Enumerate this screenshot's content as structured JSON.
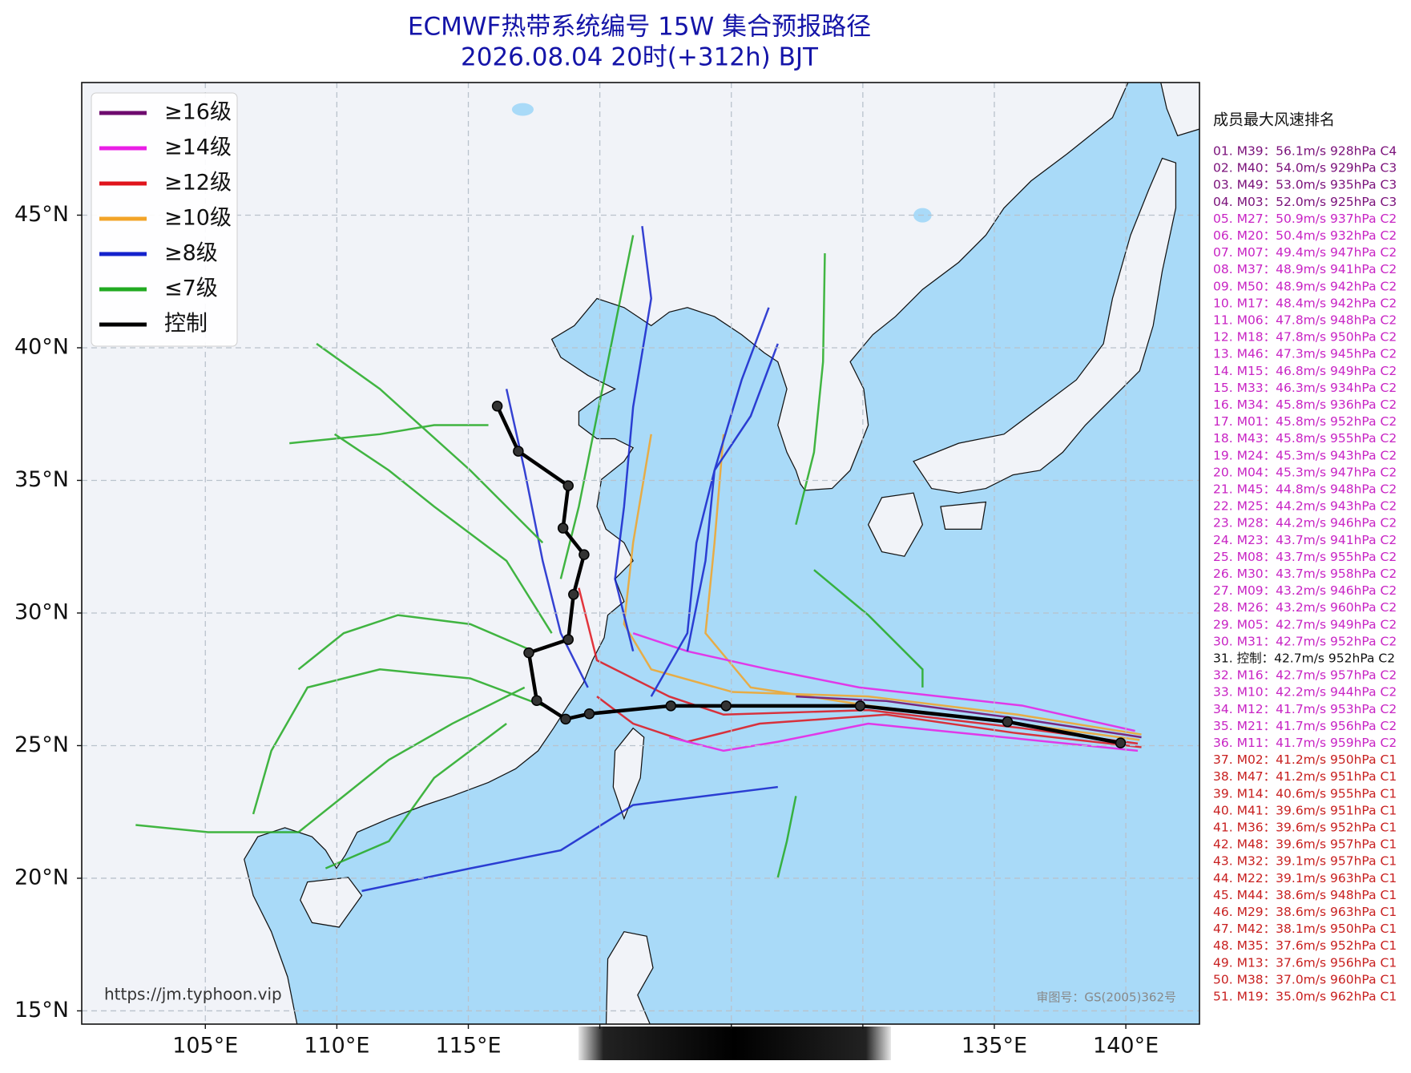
{
  "header": {
    "title": "ECMWF热带系统编号 15W 集合预报路径",
    "subtitle": "2026.08.04 20时(+312h) BJT"
  },
  "chart_data": {
    "type": "track-map",
    "xlim": [
      100.3,
      142.8
    ],
    "ylim": [
      14.5,
      50
    ],
    "grid": true,
    "legend_position": "upper left",
    "xticks": [
      {
        "value": 105,
        "label": "105°E"
      },
      {
        "value": 110,
        "label": "110°E"
      },
      {
        "value": 115,
        "label": "115°E"
      },
      {
        "value": 120,
        "label": null
      },
      {
        "value": 125,
        "label": null
      },
      {
        "value": 130,
        "label": null
      },
      {
        "value": 135,
        "label": "135°E"
      },
      {
        "value": 140,
        "label": "140°E"
      }
    ],
    "yticks": [
      {
        "value": 15,
        "label": "15°N"
      },
      {
        "value": 20,
        "label": "20°N"
      },
      {
        "value": 25,
        "label": "25°N"
      },
      {
        "value": 30,
        "label": "30°N"
      },
      {
        "value": 35,
        "label": "35°N"
      },
      {
        "value": 40,
        "label": "40°N"
      },
      {
        "value": 45,
        "label": "45°N"
      }
    ],
    "series": [
      {
        "name": "≥16级",
        "color": "#6e0a6e"
      },
      {
        "name": "≥14级",
        "color": "#ea1ee6"
      },
      {
        "name": "≥12级",
        "color": "#e0141c"
      },
      {
        "name": "≥10级",
        "color": "#f2a428"
      },
      {
        "name": "≥8级",
        "color": "#1422cc"
      },
      {
        "name": "≤7级",
        "color": "#22aa22"
      },
      {
        "name": "控制",
        "color": "#000000",
        "x": [
          139.8,
          135.5,
          129.9,
          124.8,
          122.7,
          119.6,
          118.7,
          117.6,
          117.3,
          118.8,
          119.0,
          119.4,
          118.6,
          118.8,
          116.9,
          116.1
        ],
        "y": [
          25.1,
          25.9,
          26.5,
          26.5,
          26.5,
          26.2,
          26.0,
          26.7,
          28.5,
          29.0,
          30.7,
          32.2,
          33.2,
          34.8,
          36.1,
          37.8
        ]
      }
    ]
  },
  "ranking": {
    "title": "成员最大风速排名",
    "entries": [
      {
        "text": "01. M39：56.1m/s 928hPa C4",
        "color": "#7a107a"
      },
      {
        "text": "02. M40：54.0m/s 929hPa C3",
        "color": "#7a107a"
      },
      {
        "text": "03. M49：53.0m/s 935hPa C3",
        "color": "#7a107a"
      },
      {
        "text": "04. M03：52.0m/s 925hPa C3",
        "color": "#7a107a"
      },
      {
        "text": "05. M27：50.9m/s 937hPa C2",
        "color": "#c824c4"
      },
      {
        "text": "06. M20：50.4m/s 932hPa C2",
        "color": "#c824c4"
      },
      {
        "text": "07. M07：49.4m/s 947hPa C2",
        "color": "#c824c4"
      },
      {
        "text": "08. M37：48.9m/s 941hPa C2",
        "color": "#c824c4"
      },
      {
        "text": "09. M50：48.9m/s 942hPa C2",
        "color": "#c824c4"
      },
      {
        "text": "10. M17：48.4m/s 942hPa C2",
        "color": "#c824c4"
      },
      {
        "text": "11. M06：47.8m/s 948hPa C2",
        "color": "#c824c4"
      },
      {
        "text": "12. M18：47.8m/s 950hPa C2",
        "color": "#c824c4"
      },
      {
        "text": "13. M46：47.3m/s 945hPa C2",
        "color": "#c824c4"
      },
      {
        "text": "14. M15：46.8m/s 949hPa C2",
        "color": "#c824c4"
      },
      {
        "text": "15. M33：46.3m/s 934hPa C2",
        "color": "#c824c4"
      },
      {
        "text": "16. M34：45.8m/s 936hPa C2",
        "color": "#c824c4"
      },
      {
        "text": "17. M01：45.8m/s 952hPa C2",
        "color": "#c824c4"
      },
      {
        "text": "18. M43：45.8m/s 955hPa C2",
        "color": "#c824c4"
      },
      {
        "text": "19. M24：45.3m/s 943hPa C2",
        "color": "#c824c4"
      },
      {
        "text": "20. M04：45.3m/s 947hPa C2",
        "color": "#c824c4"
      },
      {
        "text": "21. M45：44.8m/s 948hPa C2",
        "color": "#c824c4"
      },
      {
        "text": "22. M25：44.2m/s 943hPa C2",
        "color": "#c824c4"
      },
      {
        "text": "23. M28：44.2m/s 946hPa C2",
        "color": "#c824c4"
      },
      {
        "text": "24. M23：43.7m/s 941hPa C2",
        "color": "#c824c4"
      },
      {
        "text": "25. M08：43.7m/s 955hPa C2",
        "color": "#c824c4"
      },
      {
        "text": "26. M30：43.7m/s 958hPa C2",
        "color": "#c824c4"
      },
      {
        "text": "27. M09：43.2m/s 946hPa C2",
        "color": "#c824c4"
      },
      {
        "text": "28. M26：43.2m/s 960hPa C2",
        "color": "#c824c4"
      },
      {
        "text": "29. M05：42.7m/s 949hPa C2",
        "color": "#c824c4"
      },
      {
        "text": "30. M31：42.7m/s 952hPa C2",
        "color": "#c824c4"
      },
      {
        "text": "31. 控制：42.7m/s 952hPa C2",
        "color": "#111111"
      },
      {
        "text": "32. M16：42.7m/s 957hPa C2",
        "color": "#c824c4"
      },
      {
        "text": "33. M10：42.2m/s 944hPa C2",
        "color": "#c824c4"
      },
      {
        "text": "34. M12：41.7m/s 953hPa C2",
        "color": "#c824c4"
      },
      {
        "text": "35. M21：41.7m/s 956hPa C2",
        "color": "#c824c4"
      },
      {
        "text": "36. M11：41.7m/s 959hPa C2",
        "color": "#c824c4"
      },
      {
        "text": "37. M02：41.2m/s 950hPa C1",
        "color": "#c82020"
      },
      {
        "text": "38. M47：41.2m/s 951hPa C1",
        "color": "#c82020"
      },
      {
        "text": "39. M14：40.6m/s 955hPa C1",
        "color": "#c82020"
      },
      {
        "text": "40. M41：39.6m/s 951hPa C1",
        "color": "#c82020"
      },
      {
        "text": "41. M36：39.6m/s 952hPa C1",
        "color": "#c82020"
      },
      {
        "text": "42. M48：39.6m/s 957hPa C1",
        "color": "#c82020"
      },
      {
        "text": "43. M32：39.1m/s 957hPa C1",
        "color": "#c82020"
      },
      {
        "text": "44. M22：39.1m/s 963hPa C1",
        "color": "#c82020"
      },
      {
        "text": "45. M44：38.6m/s 948hPa C1",
        "color": "#c82020"
      },
      {
        "text": "46. M29：38.6m/s 963hPa C1",
        "color": "#c82020"
      },
      {
        "text": "47. M42：38.1m/s 950hPa C1",
        "color": "#c82020"
      },
      {
        "text": "48. M35：37.6m/s 952hPa C1",
        "color": "#c82020"
      },
      {
        "text": "49. M13：37.6m/s 956hPa C1",
        "color": "#c82020"
      },
      {
        "text": "50. M38：37.0m/s 960hPa C1",
        "color": "#c82020"
      },
      {
        "text": "51. M19：35.0m/s 962hPa C1",
        "color": "#c82020"
      }
    ]
  },
  "source": "https://jm.typhoon.vip",
  "approval": "审图号：GS(2005)362号"
}
